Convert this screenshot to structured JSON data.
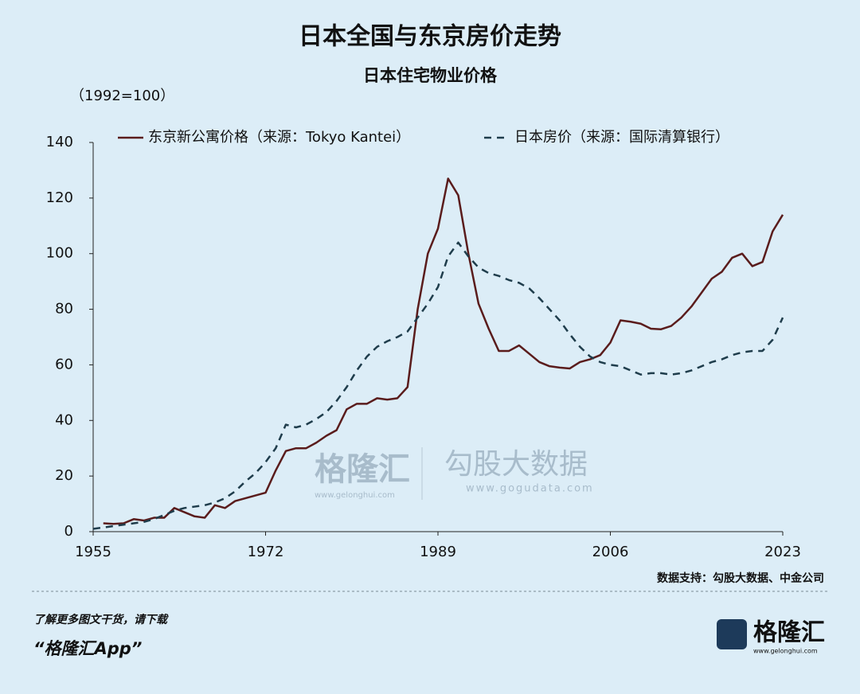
{
  "chart_data": {
    "type": "line",
    "title": "日本全国与东京房价走势",
    "subtitle": "日本住宅物业价格",
    "unit_label": "（1992=100）",
    "source": "数据支持：勾股大数据、中金公司",
    "footer_text": "了解更多图文干货，请下载",
    "footer_app": "“格隆汇App”",
    "logo": "格隆汇",
    "logo_url": "www.gelonghui.com",
    "watermark_left": "格隆汇",
    "watermark_left_url": "www.gelonghui.com",
    "watermark_right": "勾股大数据",
    "watermark_right_url": "www.gogudata.com",
    "x": [
      1955,
      1956,
      1957,
      1958,
      1959,
      1960,
      1961,
      1962,
      1963,
      1964,
      1965,
      1966,
      1967,
      1968,
      1969,
      1970,
      1971,
      1972,
      1973,
      1974,
      1975,
      1976,
      1977,
      1978,
      1979,
      1980,
      1981,
      1982,
      1983,
      1984,
      1985,
      1986,
      1987,
      1988,
      1989,
      1990,
      1991,
      1992,
      1993,
      1994,
      1995,
      1996,
      1997,
      1998,
      1999,
      2000,
      2001,
      2002,
      2003,
      2004,
      2005,
      2006,
      2007,
      2008,
      2009,
      2010,
      2011,
      2012,
      2013,
      2014,
      2015,
      2016,
      2017,
      2018,
      2019,
      2020,
      2021,
      2022,
      2023
    ],
    "xlim": [
      1955,
      2023
    ],
    "xticks": [
      1955,
      1972,
      1989,
      2006,
      2023
    ],
    "ylim": [
      0,
      140
    ],
    "yticks": [
      0,
      20,
      40,
      60,
      80,
      100,
      120,
      140
    ],
    "series": [
      {
        "name": "东京新公寓价格（来源：Tokyo Kantei）",
        "color": "#5a1c1c",
        "dash": false,
        "values": [
          null,
          3,
          2.8,
          3,
          4.5,
          4,
          5,
          5,
          8.5,
          7,
          5.5,
          5,
          9.5,
          8.5,
          11,
          12,
          13,
          14,
          22,
          29,
          30,
          30,
          32,
          34.5,
          36.5,
          44,
          46,
          46,
          48,
          47.5,
          48,
          52,
          80,
          100,
          109,
          127,
          121,
          100,
          82,
          73,
          65,
          65,
          67,
          64,
          61,
          59.5,
          59,
          58.7,
          61,
          62,
          63.5,
          68,
          76,
          75.5,
          74.8,
          73,
          72.8,
          74,
          77,
          81,
          86,
          91,
          93.5,
          98.5,
          100,
          95.5,
          97,
          108,
          114
        ]
      },
      {
        "name": "日本房价（来源：国际清算银行）",
        "color": "#1f3d4c",
        "dash": true,
        "values": [
          1,
          1.5,
          2,
          2.5,
          3,
          3.5,
          4.5,
          6,
          7.5,
          8.5,
          9,
          9.5,
          10.5,
          12,
          14.5,
          18,
          21,
          25,
          30,
          38.5,
          37.5,
          38.5,
          40.5,
          43,
          47,
          52,
          58,
          63,
          66.5,
          68.5,
          70,
          72,
          77,
          82,
          88,
          99,
          104,
          99,
          95,
          93,
          92,
          90.5,
          89.5,
          87.5,
          84,
          80,
          76,
          71,
          66.5,
          63,
          61,
          60,
          59.5,
          58,
          56.5,
          57,
          57,
          56.5,
          57,
          58,
          59.5,
          61,
          62,
          63.5,
          64.5,
          65,
          65,
          69,
          77
        ]
      }
    ]
  }
}
